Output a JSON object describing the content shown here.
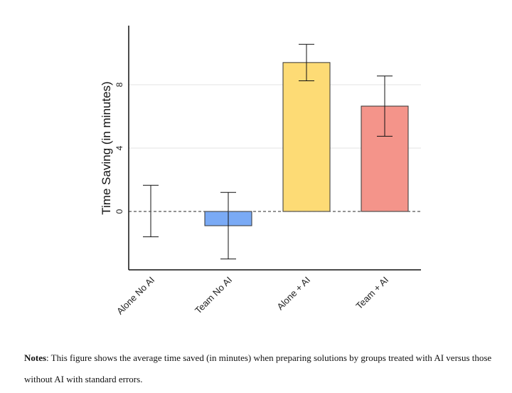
{
  "chart_data": {
    "type": "bar",
    "categories": [
      "Alone No AI",
      "Team No AI",
      "Alone + AI",
      "Team + AI"
    ],
    "values": [
      0,
      -0.9,
      9.4,
      6.65
    ],
    "error_low": [
      -1.6,
      -3.0,
      8.25,
      4.75
    ],
    "error_high": [
      1.65,
      1.2,
      10.55,
      8.55
    ],
    "colors": [
      "#ffffff",
      "#7aaaf5",
      "#fddb75",
      "#f4948a"
    ],
    "ylabel": "Time Saving (in minutes)",
    "xlabel": "",
    "yticks": [
      0,
      4,
      8
    ],
    "ytick_labels": [
      "0",
      "4",
      "8"
    ],
    "ylim": [
      -3.7,
      11.8
    ],
    "grid": true,
    "reference_line": 0
  },
  "notes": {
    "label": "Notes",
    "text": ": This figure shows the average time saved (in minutes) when preparing solutions by groups treated with AI versus those without AI with standard errors."
  }
}
